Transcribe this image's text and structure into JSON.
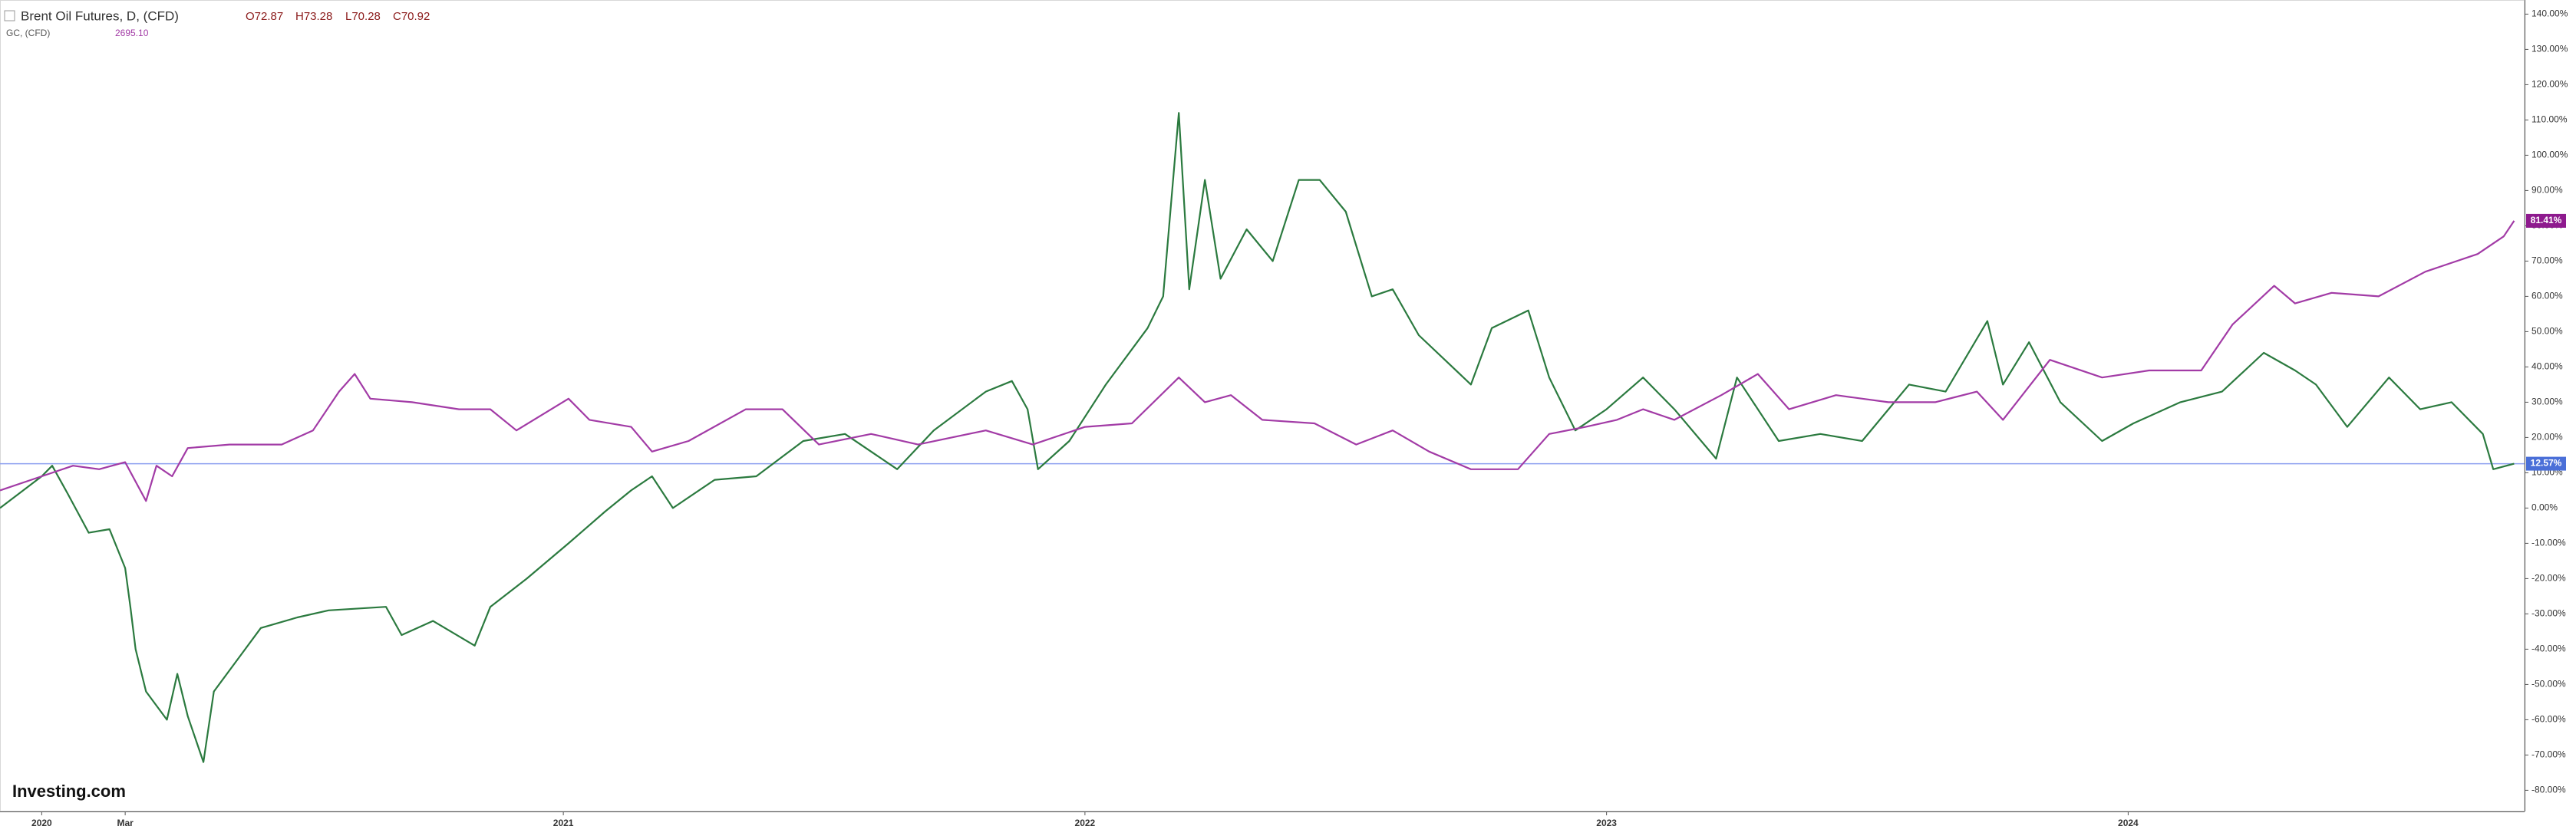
{
  "chart_data": {
    "type": "line",
    "header": {
      "symbol": "Brent Oil Futures, D, (CFD)",
      "open": "O72.87",
      "high": "H73.28",
      "low": "L70.28",
      "close": "C70.92",
      "compare_symbol": "GC, (CFD)",
      "compare_value": "2695.10"
    },
    "watermark": "Investing.com",
    "xlim": [
      2019.92,
      2024.76
    ],
    "xticks": [
      {
        "value": 2020,
        "label": "2020"
      },
      {
        "value": 2020.16,
        "label": "Mar"
      },
      {
        "value": 2021,
        "label": "2021"
      },
      {
        "value": 2022,
        "label": "2022"
      },
      {
        "value": 2023,
        "label": "2023"
      },
      {
        "value": 2024,
        "label": "2024"
      }
    ],
    "ylim": [
      -86,
      144
    ],
    "yticks": [
      {
        "value": 140,
        "label": "140.00%"
      },
      {
        "value": 130,
        "label": "130.00%"
      },
      {
        "value": 120,
        "label": "120.00%"
      },
      {
        "value": 110,
        "label": "110.00%"
      },
      {
        "value": 100,
        "label": "100.00%"
      },
      {
        "value": 90,
        "label": "90.00%"
      },
      {
        "value": 80,
        "label": "80.00%"
      },
      {
        "value": 70,
        "label": "70.00%"
      },
      {
        "value": 60,
        "label": "60.00%"
      },
      {
        "value": 50,
        "label": "50.00%"
      },
      {
        "value": 40,
        "label": "40.00%"
      },
      {
        "value": 30,
        "label": "30.00%"
      },
      {
        "value": 20,
        "label": "20.00%"
      },
      {
        "value": 10,
        "label": "10.00%"
      },
      {
        "value": 0,
        "label": "0.00%"
      },
      {
        "value": -10,
        "label": "-10.00%"
      },
      {
        "value": -20,
        "label": "-20.00%"
      },
      {
        "value": -30,
        "label": "-30.00%"
      },
      {
        "value": -40,
        "label": "-40.00%"
      },
      {
        "value": -50,
        "label": "-50.00%"
      },
      {
        "value": -60,
        "label": "-60.00%"
      },
      {
        "value": -70,
        "label": "-70.00%"
      },
      {
        "value": -80,
        "label": "-80.00%"
      }
    ],
    "series": [
      {
        "color": "#2b7a3f",
        "label_color": "#4a6fd8",
        "last_value_label": "12.57%",
        "x": [
          2019.92,
          2020.0,
          2020.02,
          2020.05,
          2020.09,
          2020.13,
          2020.16,
          2020.17,
          2020.18,
          2020.2,
          2020.24,
          2020.26,
          2020.28,
          2020.31,
          2020.33,
          2020.38,
          2020.42,
          2020.49,
          2020.55,
          2020.66,
          2020.69,
          2020.75,
          2020.83,
          2020.86,
          2020.93,
          2021.01,
          2021.08,
          2021.13,
          2021.17,
          2021.21,
          2021.29,
          2021.37,
          2021.46,
          2021.54,
          2021.64,
          2021.71,
          2021.81,
          2021.86,
          2021.89,
          2021.91,
          2021.97,
          2022.04,
          2022.12,
          2022.15,
          2022.18,
          2022.2,
          2022.23,
          2022.26,
          2022.31,
          2022.36,
          2022.41,
          2022.45,
          2022.5,
          2022.55,
          2022.59,
          2022.64,
          2022.69,
          2022.74,
          2022.78,
          2022.85,
          2022.89,
          2022.94,
          2023.0,
          2023.07,
          2023.13,
          2023.21,
          2023.25,
          2023.33,
          2023.41,
          2023.49,
          2023.58,
          2023.65,
          2023.73,
          2023.76,
          2023.81,
          2023.87,
          2023.95,
          2024.01,
          2024.1,
          2024.18,
          2024.26,
          2024.32,
          2024.36,
          2024.42,
          2024.5,
          2024.56,
          2024.62,
          2024.68,
          2024.7,
          2024.74
        ],
        "values": [
          0,
          9,
          12,
          4,
          -7,
          -6,
          -17,
          -28,
          -40,
          -52,
          -60,
          -47,
          -59,
          -72,
          -52,
          -42,
          -34,
          -31,
          -29,
          -28,
          -36,
          -32,
          -39,
          -28,
          -20,
          -10,
          -1,
          5,
          9,
          0,
          8,
          9,
          19,
          21,
          11,
          22,
          33,
          36,
          28,
          11,
          19,
          35,
          51,
          60,
          112,
          62,
          93,
          65,
          79,
          70,
          93,
          93,
          84,
          60,
          62,
          49,
          42,
          35,
          51,
          56,
          37,
          22,
          28,
          37,
          28,
          14,
          37,
          19,
          21,
          19,
          35,
          33,
          53,
          35,
          47,
          30,
          19,
          24,
          30,
          33,
          44,
          39,
          35,
          23,
          37,
          28,
          30,
          21,
          11,
          12.57
        ]
      },
      {
        "color": "#a23ba6",
        "label_color": "#8e1a8e",
        "last_value_label": "81.41%",
        "x": [
          2019.92,
          2020.0,
          2020.06,
          2020.11,
          2020.16,
          2020.2,
          2020.22,
          2020.25,
          2020.28,
          2020.36,
          2020.46,
          2020.52,
          2020.57,
          2020.6,
          2020.63,
          2020.71,
          2020.8,
          2020.86,
          2020.91,
          2021.01,
          2021.05,
          2021.13,
          2021.17,
          2021.24,
          2021.35,
          2021.42,
          2021.49,
          2021.59,
          2021.68,
          2021.81,
          2021.9,
          2022.0,
          2022.09,
          2022.18,
          2022.23,
          2022.28,
          2022.34,
          2022.44,
          2022.52,
          2022.59,
          2022.66,
          2022.74,
          2022.83,
          2022.89,
          2022.96,
          2023.02,
          2023.07,
          2023.13,
          2023.22,
          2023.29,
          2023.35,
          2023.44,
          2023.54,
          2023.63,
          2023.71,
          2023.76,
          2023.85,
          2023.95,
          2024.04,
          2024.14,
          2024.2,
          2024.28,
          2024.32,
          2024.39,
          2024.48,
          2024.57,
          2024.67,
          2024.72,
          2024.74
        ],
        "values": [
          5,
          9,
          12,
          11,
          13,
          2,
          12,
          9,
          17,
          18,
          18,
          22,
          33,
          38,
          31,
          30,
          28,
          28,
          22,
          31,
          25,
          23,
          16,
          19,
          28,
          28,
          18,
          21,
          18,
          22,
          18,
          23,
          24,
          37,
          30,
          32,
          25,
          24,
          18,
          22,
          16,
          11,
          11,
          21,
          23,
          25,
          28,
          25,
          32,
          38,
          28,
          32,
          30,
          30,
          33,
          25,
          42,
          37,
          39,
          39,
          52,
          63,
          58,
          61,
          60,
          67,
          72,
          77,
          81.41
        ]
      }
    ]
  }
}
